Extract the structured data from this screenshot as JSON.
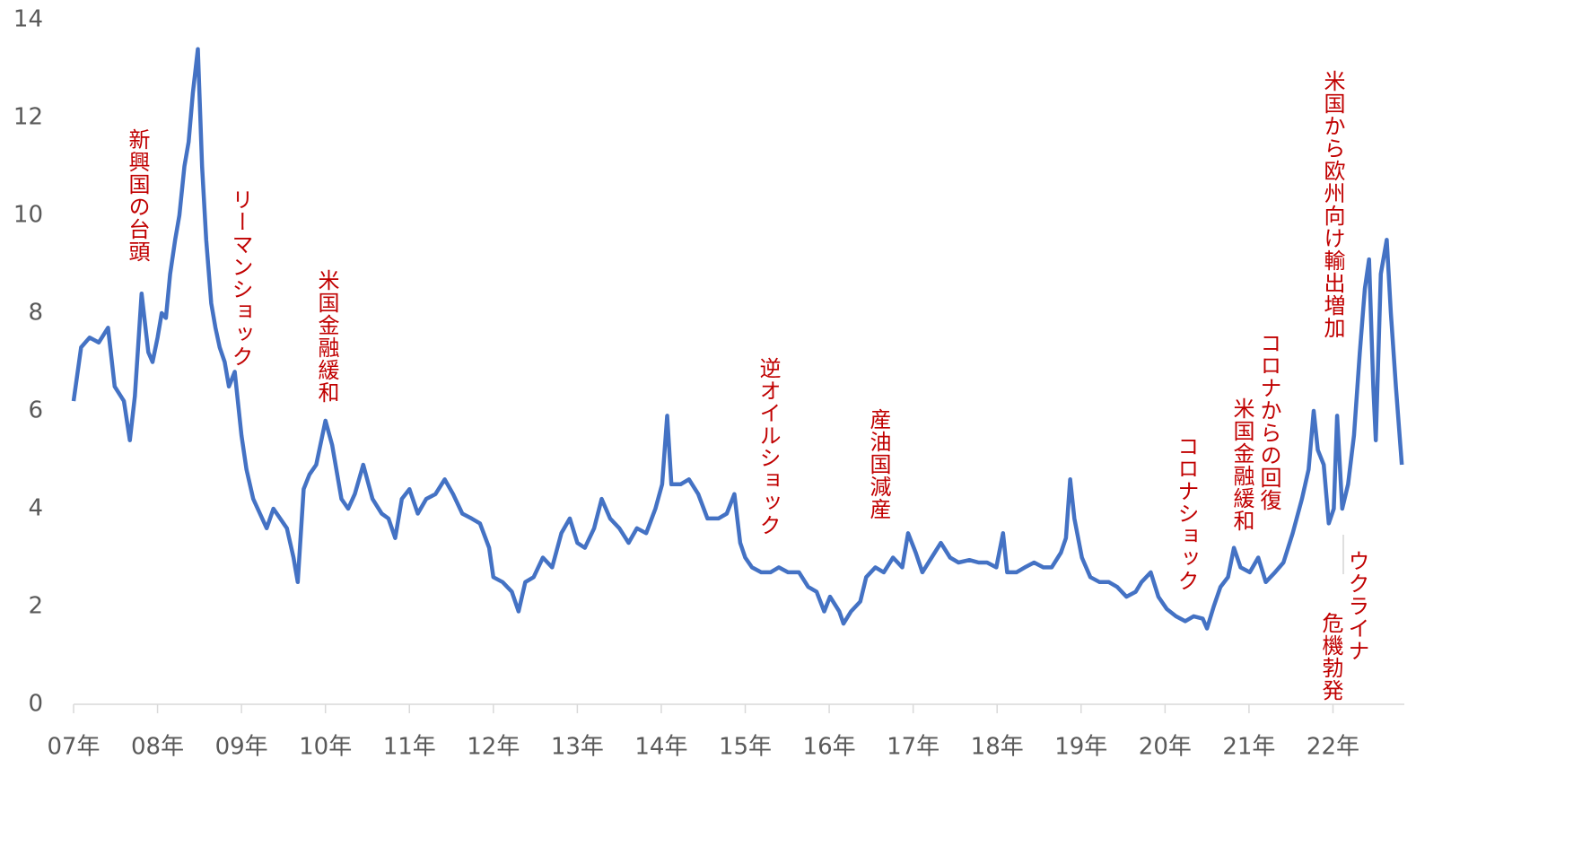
{
  "chart_data": {
    "type": "line",
    "x": [
      2007.0,
      2007.09,
      2007.19,
      2007.3,
      2007.41,
      2007.49,
      2007.6,
      2007.67,
      2007.73,
      2007.81,
      2007.89,
      2007.94,
      2008.0,
      2008.05,
      2008.1,
      2008.15,
      2008.21,
      2008.26,
      2008.32,
      2008.37,
      2008.42,
      2008.48,
      2008.53,
      2008.58,
      2008.64,
      2008.69,
      2008.74,
      2008.8,
      2008.85,
      2008.92,
      2009.0,
      2009.06,
      2009.14,
      2009.22,
      2009.3,
      2009.38,
      2009.46,
      2009.54,
      2009.62,
      2009.67,
      2009.74,
      2009.81,
      2009.89,
      2010.0,
      2010.08,
      2010.19,
      2010.27,
      2010.35,
      2010.45,
      2010.56,
      2010.67,
      2010.75,
      2010.83,
      2010.91,
      2011.0,
      2011.1,
      2011.2,
      2011.31,
      2011.42,
      2011.52,
      2011.63,
      2011.74,
      2011.84,
      2011.95,
      2012.0,
      2012.11,
      2012.22,
      2012.3,
      2012.38,
      2012.48,
      2012.59,
      2012.7,
      2012.81,
      2012.91,
      2013.0,
      2013.09,
      2013.2,
      2013.29,
      2013.39,
      2013.5,
      2013.61,
      2013.71,
      2013.82,
      2013.93,
      2014.01,
      2014.07,
      2014.12,
      2014.23,
      2014.33,
      2014.44,
      2014.55,
      2014.68,
      2014.78,
      2014.87,
      2014.94,
      2015.0,
      2015.08,
      2015.19,
      2015.3,
      2015.4,
      2015.51,
      2015.64,
      2015.75,
      2015.85,
      2015.94,
      2016.01,
      2016.12,
      2016.17,
      2016.26,
      2016.37,
      2016.44,
      2016.55,
      2016.65,
      2016.76,
      2016.87,
      2016.94,
      2017.03,
      2017.11,
      2017.22,
      2017.33,
      2017.44,
      2017.54,
      2017.67,
      2017.78,
      2017.88,
      2017.99,
      2018.07,
      2018.12,
      2018.23,
      2018.33,
      2018.44,
      2018.55,
      2018.65,
      2018.76,
      2018.82,
      2018.87,
      2018.92,
      2019.01,
      2019.11,
      2019.22,
      2019.33,
      2019.43,
      2019.54,
      2019.65,
      2019.72,
      2019.83,
      2019.92,
      2020.02,
      2020.13,
      2020.24,
      2020.34,
      2020.45,
      2020.5,
      2020.58,
      2020.66,
      2020.75,
      2020.82,
      2020.9,
      2021.01,
      2021.11,
      2021.2,
      2021.31,
      2021.41,
      2021.52,
      2021.63,
      2021.71,
      2021.77,
      2021.82,
      2021.89,
      2021.95,
      2022.01,
      2022.05,
      2022.11,
      2022.18,
      2022.25,
      2022.32,
      2022.38,
      2022.43,
      2022.48,
      2022.51,
      2022.57,
      2022.64,
      2022.69,
      2022.75,
      2022.82
    ],
    "values": [
      6.2,
      7.3,
      7.5,
      7.4,
      7.7,
      6.5,
      6.2,
      5.4,
      6.3,
      8.4,
      7.2,
      7.0,
      7.5,
      8.0,
      7.9,
      8.8,
      9.5,
      10.0,
      11.0,
      11.5,
      12.5,
      13.4,
      11.0,
      9.5,
      8.2,
      7.7,
      7.3,
      7.0,
      6.5,
      6.8,
      5.5,
      4.8,
      4.2,
      3.9,
      3.6,
      4.0,
      3.8,
      3.6,
      3.0,
      2.5,
      4.4,
      4.7,
      4.9,
      5.8,
      5.3,
      4.2,
      4.0,
      4.3,
      4.9,
      4.2,
      3.9,
      3.8,
      3.4,
      4.2,
      4.4,
      3.9,
      4.2,
      4.3,
      4.6,
      4.3,
      3.9,
      3.8,
      3.7,
      3.2,
      2.6,
      2.5,
      2.3,
      1.9,
      2.5,
      2.6,
      3.0,
      2.8,
      3.5,
      3.8,
      3.3,
      3.2,
      3.6,
      4.2,
      3.8,
      3.6,
      3.3,
      3.6,
      3.5,
      4.0,
      4.5,
      5.9,
      4.5,
      4.5,
      4.6,
      4.3,
      3.8,
      3.8,
      3.9,
      4.3,
      3.3,
      3.0,
      2.8,
      2.7,
      2.7,
      2.8,
      2.7,
      2.7,
      2.4,
      2.3,
      1.9,
      2.2,
      1.9,
      1.65,
      1.9,
      2.1,
      2.6,
      2.8,
      2.7,
      3.0,
      2.8,
      3.5,
      3.1,
      2.7,
      3.0,
      3.3,
      3.0,
      2.9,
      2.95,
      2.9,
      2.9,
      2.8,
      3.5,
      2.7,
      2.7,
      2.8,
      2.9,
      2.8,
      2.8,
      3.1,
      3.4,
      4.6,
      3.8,
      3.0,
      2.6,
      2.5,
      2.5,
      2.4,
      2.2,
      2.3,
      2.5,
      2.7,
      2.2,
      1.95,
      1.8,
      1.7,
      1.8,
      1.75,
      1.55,
      2.0,
      2.4,
      2.6,
      3.2,
      2.8,
      2.7,
      3.0,
      2.5,
      2.7,
      2.9,
      3.5,
      4.2,
      4.8,
      6.0,
      5.2,
      4.9,
      3.7,
      4.0,
      5.9,
      4.0,
      4.5,
      5.5,
      7.2,
      8.5,
      9.1,
      6.5,
      5.4,
      8.8,
      9.5,
      8.0,
      6.5,
      4.9
    ],
    "color": "#4472c4",
    "xlim": [
      2007,
      2022.85
    ],
    "xticks": [
      {
        "value": 2007,
        "label": "07年"
      },
      {
        "value": 2008,
        "label": "08年"
      },
      {
        "value": 2009,
        "label": "09年"
      },
      {
        "value": 2010,
        "label": "10年"
      },
      {
        "value": 2011,
        "label": "11年"
      },
      {
        "value": 2012,
        "label": "12年"
      },
      {
        "value": 2013,
        "label": "13年"
      },
      {
        "value": 2014,
        "label": "14年"
      },
      {
        "value": 2015,
        "label": "15年"
      },
      {
        "value": 2016,
        "label": "16年"
      },
      {
        "value": 2017,
        "label": "17年"
      },
      {
        "value": 2018,
        "label": "18年"
      },
      {
        "value": 2019,
        "label": "19年"
      },
      {
        "value": 2020,
        "label": "20年"
      },
      {
        "value": 2021,
        "label": "21年"
      },
      {
        "value": 2022,
        "label": "22年"
      }
    ],
    "ylim": [
      0,
      14
    ],
    "yticks": [
      0,
      2,
      4,
      6,
      8,
      10,
      12,
      14
    ],
    "grid": false,
    "annotations": [
      "新興国の台頭",
      "リーマンショック",
      "米国金融緩和",
      "逆オイルショック",
      "産油国減産",
      "コロナショック",
      "コロナからの回復",
      "米国金融緩和",
      "米国から欧州向け輸出増加",
      "ウクライナ",
      "危機勃発"
    ]
  }
}
